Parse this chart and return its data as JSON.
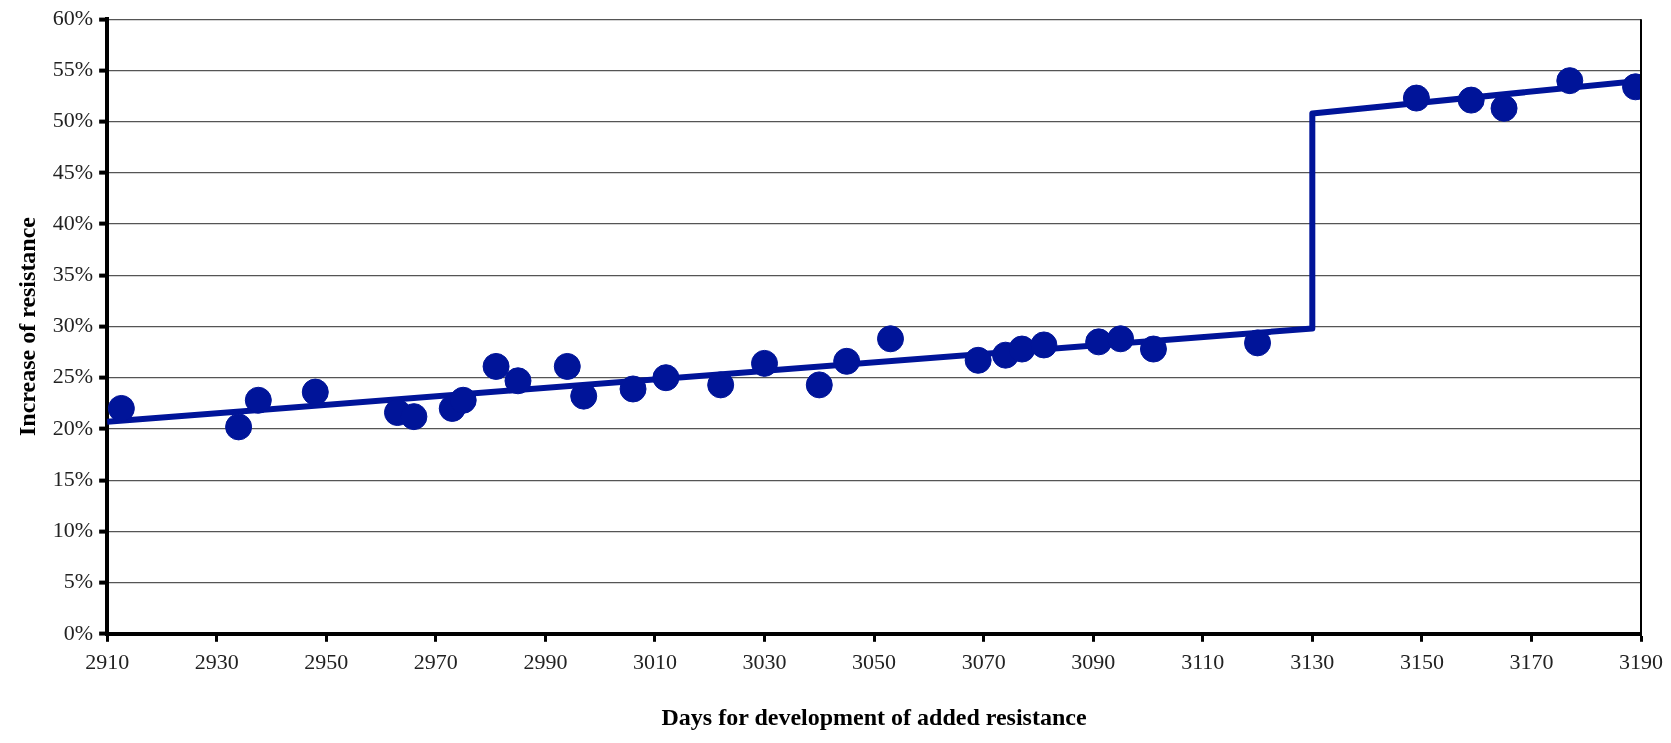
{
  "chart_data": {
    "type": "scatter",
    "xlabel": "Days for development of added resistance",
    "ylabel": "Increase of resistance",
    "xlim": [
      2910,
      3190
    ],
    "xticks": [
      2910,
      2930,
      2950,
      2970,
      2990,
      3010,
      3030,
      3050,
      3070,
      3090,
      3110,
      3130,
      3150,
      3170,
      3190
    ],
    "ylim": [
      0,
      60
    ],
    "yticks": [
      {
        "value": 0,
        "label": "0%"
      },
      {
        "value": 5,
        "label": "5%"
      },
      {
        "value": 10,
        "label": "10%"
      },
      {
        "value": 15,
        "label": "15%"
      },
      {
        "value": 20,
        "label": "20%"
      },
      {
        "value": 25,
        "label": "25%"
      },
      {
        "value": 30,
        "label": "30%"
      },
      {
        "value": 35,
        "label": "35%"
      },
      {
        "value": 40,
        "label": "40%"
      },
      {
        "value": 45,
        "label": "45%"
      },
      {
        "value": 50,
        "label": "50%"
      },
      {
        "value": 55,
        "label": "55%"
      },
      {
        "value": 60,
        "label": "60%"
      }
    ],
    "grid": "y",
    "legend": false,
    "marker": "circle",
    "series": [
      {
        "color": "#001499",
        "x": [
          2912.6,
          2934,
          2937.6,
          2948,
          2963,
          2966,
          2973,
          2975,
          2981,
          2985,
          2994,
          2997,
          3006,
          3012,
          3022,
          3030,
          3040,
          3045,
          3053,
          3069,
          3074,
          3077,
          3081,
          3091,
          3095,
          3101,
          3120,
          3149,
          3159,
          3165,
          3177,
          3189
        ],
        "values": [
          22.0,
          20.2,
          22.8,
          23.6,
          21.6,
          21.2,
          22.0,
          22.8,
          26.1,
          24.7,
          26.1,
          23.2,
          23.9,
          25.0,
          24.3,
          26.4,
          24.3,
          26.6,
          28.8,
          26.7,
          27.2,
          27.8,
          28.2,
          28.5,
          28.8,
          27.8,
          28.4,
          52.3,
          52.1,
          51.3,
          54.0,
          53.4
        ]
      },
      {
        "type": "line",
        "color": "#001499",
        "marker": "none",
        "x": [
          2910,
          3130,
          3130,
          3190
        ],
        "values": [
          20.7,
          29.8,
          50.8,
          54.0
        ]
      }
    ]
  }
}
